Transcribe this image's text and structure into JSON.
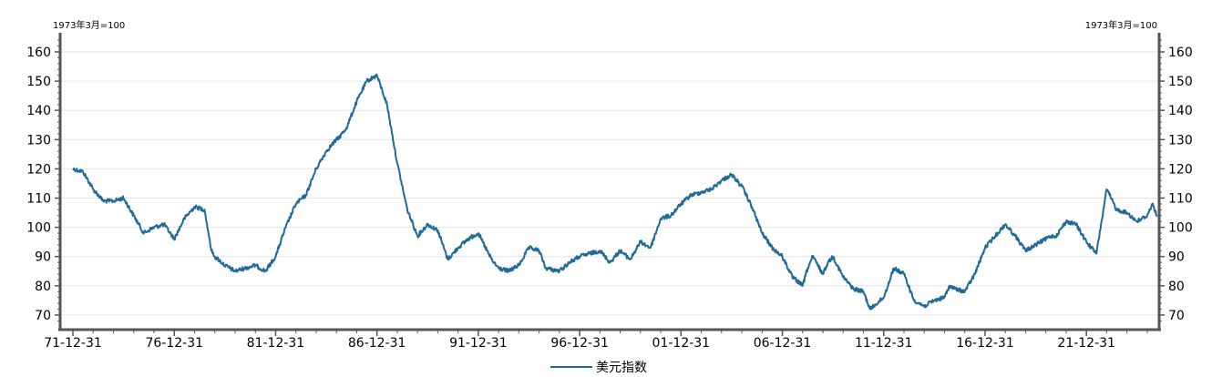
{
  "chart_data": {
    "type": "line",
    "title": "",
    "left_unit": "1973年3月=100",
    "right_unit": "1973年3月=100",
    "xlabel": "",
    "ylabel": "",
    "ylim": [
      66,
      166
    ],
    "yticks": [
      "70",
      "80",
      "90",
      "100",
      "110",
      "120",
      "130",
      "140",
      "150",
      "160"
    ],
    "xticks": [
      "71-12-31",
      "76-12-31",
      "81-12-31",
      "86-12-31",
      "91-12-31",
      "96-12-31",
      "01-12-31",
      "06-12-31",
      "11-12-31",
      "16-12-31",
      "21-12-31"
    ],
    "grid": "horizontal",
    "legend_position": "bottom",
    "line_color": "#1f6b96",
    "series": [
      {
        "name": "美元指数",
        "x": [
          "1971-12-31",
          "1972-06-30",
          "1972-12-31",
          "1973-06-30",
          "1973-12-31",
          "1974-06-30",
          "1974-12-31",
          "1975-06-30",
          "1975-12-31",
          "1976-06-30",
          "1976-12-31",
          "1977-06-30",
          "1977-12-31",
          "1978-06-30",
          "1978-10-31",
          "1978-12-31",
          "1979-06-30",
          "1979-12-31",
          "1980-06-30",
          "1980-12-31",
          "1981-06-30",
          "1981-12-31",
          "1982-06-30",
          "1982-12-31",
          "1983-06-30",
          "1983-12-31",
          "1984-06-30",
          "1984-12-31",
          "1985-02-28",
          "1985-06-30",
          "1985-12-31",
          "1986-06-30",
          "1986-12-31",
          "1987-06-30",
          "1987-12-31",
          "1988-06-30",
          "1988-12-31",
          "1989-06-30",
          "1989-12-31",
          "1990-06-30",
          "1990-12-31",
          "1991-06-30",
          "1991-12-31",
          "1992-06-30",
          "1992-09-30",
          "1992-12-31",
          "1993-06-30",
          "1993-12-31",
          "1994-06-30",
          "1994-12-31",
          "1995-04-30",
          "1995-12-31",
          "1996-06-30",
          "1996-12-31",
          "1997-06-30",
          "1997-12-31",
          "1998-06-30",
          "1998-12-31",
          "1999-06-30",
          "1999-12-31",
          "2000-06-30",
          "2000-12-31",
          "2001-06-30",
          "2001-12-31",
          "2002-06-30",
          "2002-12-31",
          "2003-06-30",
          "2003-12-31",
          "2004-06-30",
          "2004-12-31",
          "2005-06-30",
          "2005-12-31",
          "2006-06-30",
          "2006-12-31",
          "2007-06-30",
          "2007-12-31",
          "2008-03-31",
          "2008-06-30",
          "2008-12-31",
          "2009-03-31",
          "2009-06-30",
          "2009-12-31",
          "2010-06-30",
          "2010-12-31",
          "2011-04-30",
          "2011-12-31",
          "2012-06-30",
          "2012-12-31",
          "2013-06-30",
          "2013-12-31",
          "2014-06-30",
          "2014-12-31",
          "2015-03-31",
          "2015-06-30",
          "2015-12-31",
          "2016-06-30",
          "2016-12-31",
          "2017-06-30",
          "2017-12-31",
          "2018-06-30",
          "2018-12-31",
          "2019-06-30",
          "2019-12-31",
          "2020-03-31",
          "2020-06-30",
          "2020-12-31",
          "2021-06-30",
          "2021-12-31",
          "2022-03-31",
          "2022-06-30",
          "2022-09-30",
          "2022-12-31",
          "2023-06-30",
          "2023-12-31",
          "2024-06-30",
          "2024-12-31",
          "2025-03-31",
          "2025-06-30"
        ],
        "values": [
          120,
          119,
          113,
          109,
          109,
          110,
          104,
          98,
          100,
          101,
          96,
          103,
          107,
          106,
          92,
          90,
          87,
          85,
          86,
          87,
          85,
          90,
          100,
          108,
          111,
          120,
          126,
          130,
          131,
          134,
          143,
          150,
          152,
          142,
          122,
          106,
          97,
          101,
          99,
          89,
          93,
          96,
          98,
          91,
          88,
          86,
          85,
          87,
          93,
          92,
          86,
          85,
          88,
          90,
          91,
          92,
          88,
          92,
          89,
          95,
          93,
          103,
          104,
          108,
          111,
          112,
          113,
          116,
          118,
          114,
          107,
          98,
          93,
          90,
          83,
          80,
          86,
          90,
          84,
          88,
          90,
          83,
          79,
          78,
          72,
          76,
          86,
          84,
          75,
          73,
          75,
          76,
          80,
          79,
          78,
          84,
          93,
          97,
          101,
          97,
          92,
          94,
          96,
          97,
          97,
          102,
          101,
          95,
          93,
          91,
          102,
          113,
          106,
          105,
          102,
          104,
          108,
          104
        ]
      }
    ]
  }
}
